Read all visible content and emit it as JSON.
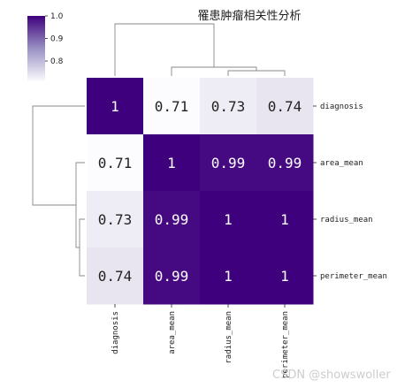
{
  "chart_data": {
    "type": "heatmap",
    "title": "罹患肿瘤相关性分析",
    "labels": [
      "diagnosis",
      "area_mean",
      "radius_mean",
      "perimeter_mean"
    ],
    "values": [
      [
        1,
        0.71,
        0.73,
        0.74
      ],
      [
        0.71,
        1,
        0.99,
        0.99
      ],
      [
        0.73,
        0.99,
        1,
        1
      ],
      [
        0.74,
        0.99,
        1,
        1
      ]
    ],
    "annotations": [
      [
        "1",
        "0.71",
        "0.73",
        "0.74"
      ],
      [
        "0.71",
        "1",
        "0.99",
        "0.99"
      ],
      [
        "0.73",
        "0.99",
        "1",
        "1"
      ],
      [
        "0.74",
        "0.99",
        "1",
        "1"
      ]
    ],
    "colormap": "Purples",
    "colorbar": {
      "vmin": 0.71,
      "vmax": 1.0,
      "ticks": [
        0.8,
        0.9,
        1.0
      ],
      "tick_labels": [
        "0.8",
        "0.9",
        "1.0"
      ]
    },
    "row_dendrogram": true,
    "col_dendrogram": true,
    "colors": {
      "dark": "#3f007d",
      "light": "#fcfbfd",
      "dendrogram": "#888888"
    }
  },
  "watermark": "CSDN @showswoller"
}
